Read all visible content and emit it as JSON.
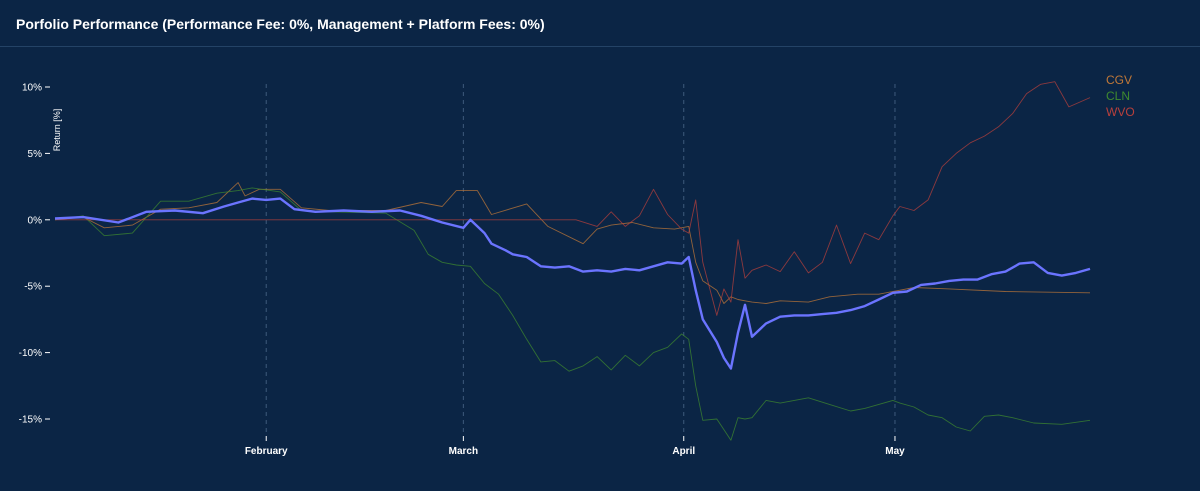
{
  "header": {
    "title": "Porfolio Performance (Performance Fee: 0%, Management + Platform Fees: 0%)"
  },
  "chart_data": {
    "type": "line",
    "title": "Porfolio Performance (Performance Fee: 0%, Management + Platform Fees: 0%)",
    "xlabel": "",
    "ylabel": "Return [%]",
    "ylim": [
      -17,
      11
    ],
    "y_ticks": [
      10,
      5,
      0,
      -5,
      -10,
      -15
    ],
    "y_tick_labels": [
      "10%",
      "5%",
      "0%",
      "-5%",
      "-10%",
      "-15%"
    ],
    "x_ticks": [
      {
        "label": "February",
        "x": 31
      },
      {
        "label": "March",
        "x": 59
      },
      {
        "label": "April",
        "x": 90.3
      },
      {
        "label": "May",
        "x": 120.3
      }
    ],
    "xlim": [
      1,
      148
    ],
    "legend_position": "top-right",
    "grid": "vertical-dashed-at-month-ticks",
    "series": [
      {
        "name": "CGV",
        "color": "#c07838",
        "in_legend": true,
        "x": [
          1,
          5,
          8,
          12,
          16,
          20,
          24,
          27,
          28,
          30,
          33,
          36,
          40,
          48,
          53,
          56,
          58,
          61,
          63,
          68,
          71,
          76,
          78,
          80,
          83,
          86,
          89,
          91,
          92,
          93,
          95,
          96,
          97,
          98,
          99,
          100,
          102,
          104,
          108,
          111,
          115,
          118,
          121,
          123,
          128,
          136,
          148
        ],
        "y": [
          0,
          0.2,
          -0.6,
          -0.4,
          0.8,
          0.9,
          1.3,
          2.8,
          1.8,
          2.3,
          2.3,
          0.9,
          0.7,
          0.7,
          1.3,
          1.0,
          2.2,
          2.2,
          0.4,
          1.2,
          -0.5,
          -1.8,
          -0.7,
          -0.4,
          -0.2,
          -0.6,
          -0.7,
          -0.5,
          -3.2,
          -4.6,
          -5.3,
          -6.3,
          -5.8,
          -6.0,
          -6.1,
          -6.2,
          -6.3,
          -6.1,
          -6.2,
          -5.8,
          -5.6,
          -5.6,
          -5.3,
          -5.1,
          -5.2,
          -5.4,
          -5.5
        ]
      },
      {
        "name": "CLN",
        "color": "#3f8a2f",
        "in_legend": true,
        "x": [
          1,
          5,
          8,
          12,
          16,
          20,
          24,
          27,
          29,
          33,
          36,
          40,
          48,
          52,
          54,
          56,
          58,
          60,
          62,
          64,
          66,
          68,
          70,
          72,
          74,
          76,
          78,
          80,
          82,
          84,
          86,
          88,
          90,
          91,
          92,
          93,
          95,
          96,
          97,
          98,
          99,
          100,
          102,
          104,
          108,
          111,
          114,
          116,
          118,
          120,
          121,
          123,
          125,
          127,
          129,
          131,
          133,
          135,
          137,
          140,
          144,
          148
        ],
        "y": [
          0,
          0.3,
          -1.2,
          -1.0,
          1.4,
          1.4,
          2.0,
          2.2,
          2.4,
          2.1,
          0.7,
          0.6,
          0.5,
          -0.8,
          -2.6,
          -3.2,
          -3.4,
          -3.5,
          -4.8,
          -5.6,
          -7.2,
          -9.0,
          -10.7,
          -10.6,
          -11.4,
          -11.0,
          -10.3,
          -11.3,
          -10.2,
          -11.0,
          -10.0,
          -9.6,
          -8.6,
          -9.0,
          -12.5,
          -15.1,
          -15.0,
          -15.8,
          -16.6,
          -14.9,
          -15.0,
          -14.9,
          -13.6,
          -13.8,
          -13.4,
          -13.9,
          -14.4,
          -14.2,
          -13.9,
          -13.6,
          -13.8,
          -14.1,
          -14.7,
          -14.9,
          -15.6,
          -15.9,
          -14.8,
          -14.7,
          -14.9,
          -15.3,
          -15.4,
          -15.1
        ]
      },
      {
        "name": "WVO",
        "color": "#b8403c",
        "in_legend": true,
        "x": [
          1,
          5,
          10,
          20,
          30,
          40,
          50,
          60,
          70,
          75,
          78,
          80,
          82,
          84,
          86,
          88,
          90,
          91,
          92,
          93,
          95,
          96,
          97,
          98,
          99,
          100,
          102,
          104,
          106,
          108,
          110,
          112,
          114,
          116,
          118,
          120,
          121,
          123,
          125,
          127,
          129,
          131,
          133,
          135,
          137,
          139,
          141,
          143,
          145,
          148
        ],
        "y": [
          0,
          0,
          0,
          0,
          0,
          0,
          0,
          0,
          0,
          0,
          -0.5,
          0.6,
          -0.5,
          0.3,
          2.3,
          0.4,
          -0.7,
          -1.0,
          1.5,
          -3.2,
          -7.2,
          -5.2,
          -6.2,
          -1.5,
          -4.4,
          -3.8,
          -3.4,
          -3.9,
          -2.4,
          -4.0,
          -3.2,
          -0.4,
          -3.3,
          -1.0,
          -1.5,
          0.3,
          1.0,
          0.7,
          1.5,
          4.0,
          5.0,
          5.8,
          6.3,
          7.0,
          8.0,
          9.5,
          10.2,
          10.4,
          8.5,
          9.2
        ]
      },
      {
        "name": "Portfolio",
        "color": "#6b74ff",
        "in_legend": false,
        "x": [
          1,
          5,
          10,
          14,
          18,
          22,
          25,
          27,
          29,
          31,
          33,
          35,
          38,
          42,
          46,
          50,
          53,
          56,
          59,
          60,
          61,
          62,
          63,
          65,
          66,
          67,
          68,
          70,
          72,
          74,
          76,
          78,
          80,
          82,
          84,
          86,
          88,
          90,
          91,
          92,
          93,
          95,
          96,
          97,
          98,
          99,
          100,
          102,
          104,
          106,
          108,
          110,
          112,
          114,
          116,
          118,
          120,
          122,
          124,
          126,
          128,
          130,
          132,
          134,
          136,
          138,
          140,
          142,
          144,
          146,
          148
        ],
        "y": [
          0.1,
          0.2,
          -0.2,
          0.6,
          0.7,
          0.5,
          1.0,
          1.3,
          1.6,
          1.5,
          1.6,
          0.8,
          0.6,
          0.7,
          0.6,
          0.7,
          0.3,
          -0.2,
          -0.6,
          0.0,
          -0.5,
          -1.0,
          -1.8,
          -2.3,
          -2.6,
          -2.7,
          -2.8,
          -3.5,
          -3.6,
          -3.5,
          -3.9,
          -3.8,
          -3.9,
          -3.7,
          -3.8,
          -3.5,
          -3.2,
          -3.3,
          -2.8,
          -5.3,
          -7.5,
          -9.2,
          -10.4,
          -11.2,
          -8.5,
          -6.4,
          -8.8,
          -7.8,
          -7.3,
          -7.2,
          -7.2,
          -7.1,
          -7.0,
          -6.8,
          -6.5,
          -6.0,
          -5.5,
          -5.4,
          -4.9,
          -4.8,
          -4.6,
          -4.5,
          -4.5,
          -4.1,
          -3.9,
          -3.3,
          -3.2,
          -4.0,
          -4.2,
          -4.0,
          -3.7
        ]
      }
    ]
  }
}
